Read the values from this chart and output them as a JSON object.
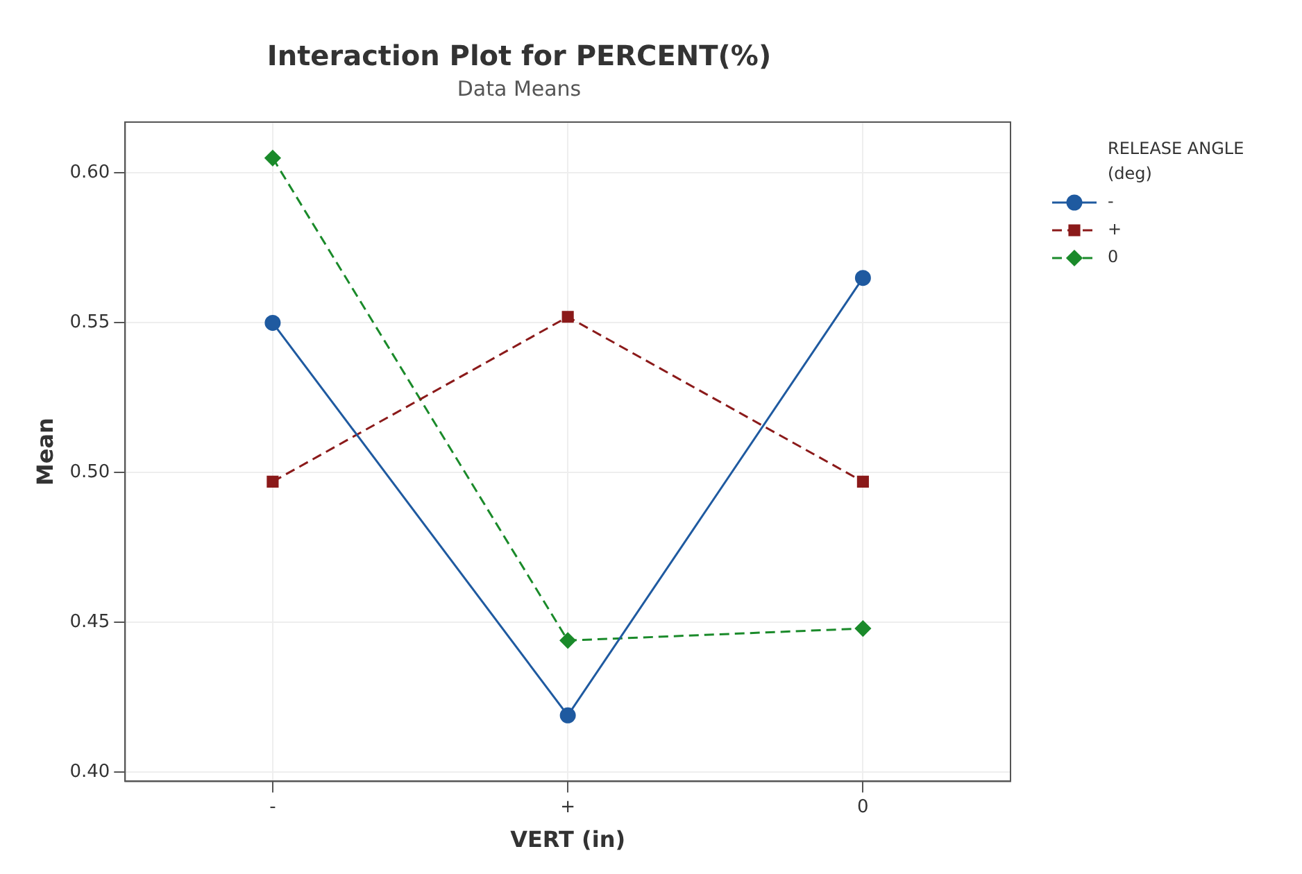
{
  "chart_data": {
    "type": "line",
    "title": "Interaction Plot for PERCENT(%)",
    "subtitle": "Data Means",
    "xlabel": "VERT (in)",
    "ylabel": "Mean",
    "legend_title": "RELEASE ANGLE (deg)",
    "categories": [
      "-",
      "+",
      "0"
    ],
    "series": [
      {
        "name": "-",
        "color": "#1f5aa0",
        "values": [
          0.55,
          0.419,
          0.565
        ],
        "marker": "circle",
        "line_style": "solid"
      },
      {
        "name": "+",
        "color": "#8b1a1a",
        "values": [
          0.497,
          0.552,
          0.497
        ],
        "marker": "square",
        "line_style": "dashed"
      },
      {
        "name": "0",
        "color": "#1a8a2a",
        "values": [
          0.605,
          0.444,
          0.448
        ],
        "marker": "diamond",
        "line_style": "dashed"
      }
    ],
    "ylim": [
      0.397,
      0.617
    ],
    "yticks": [
      {
        "value": 0.4,
        "label": "0.40"
      },
      {
        "value": 0.45,
        "label": "0.45"
      },
      {
        "value": 0.5,
        "label": "0.50"
      },
      {
        "value": 0.55,
        "label": "0.55"
      },
      {
        "value": 0.6,
        "label": "0.60"
      }
    ],
    "grid": true,
    "legend": "top right"
  }
}
